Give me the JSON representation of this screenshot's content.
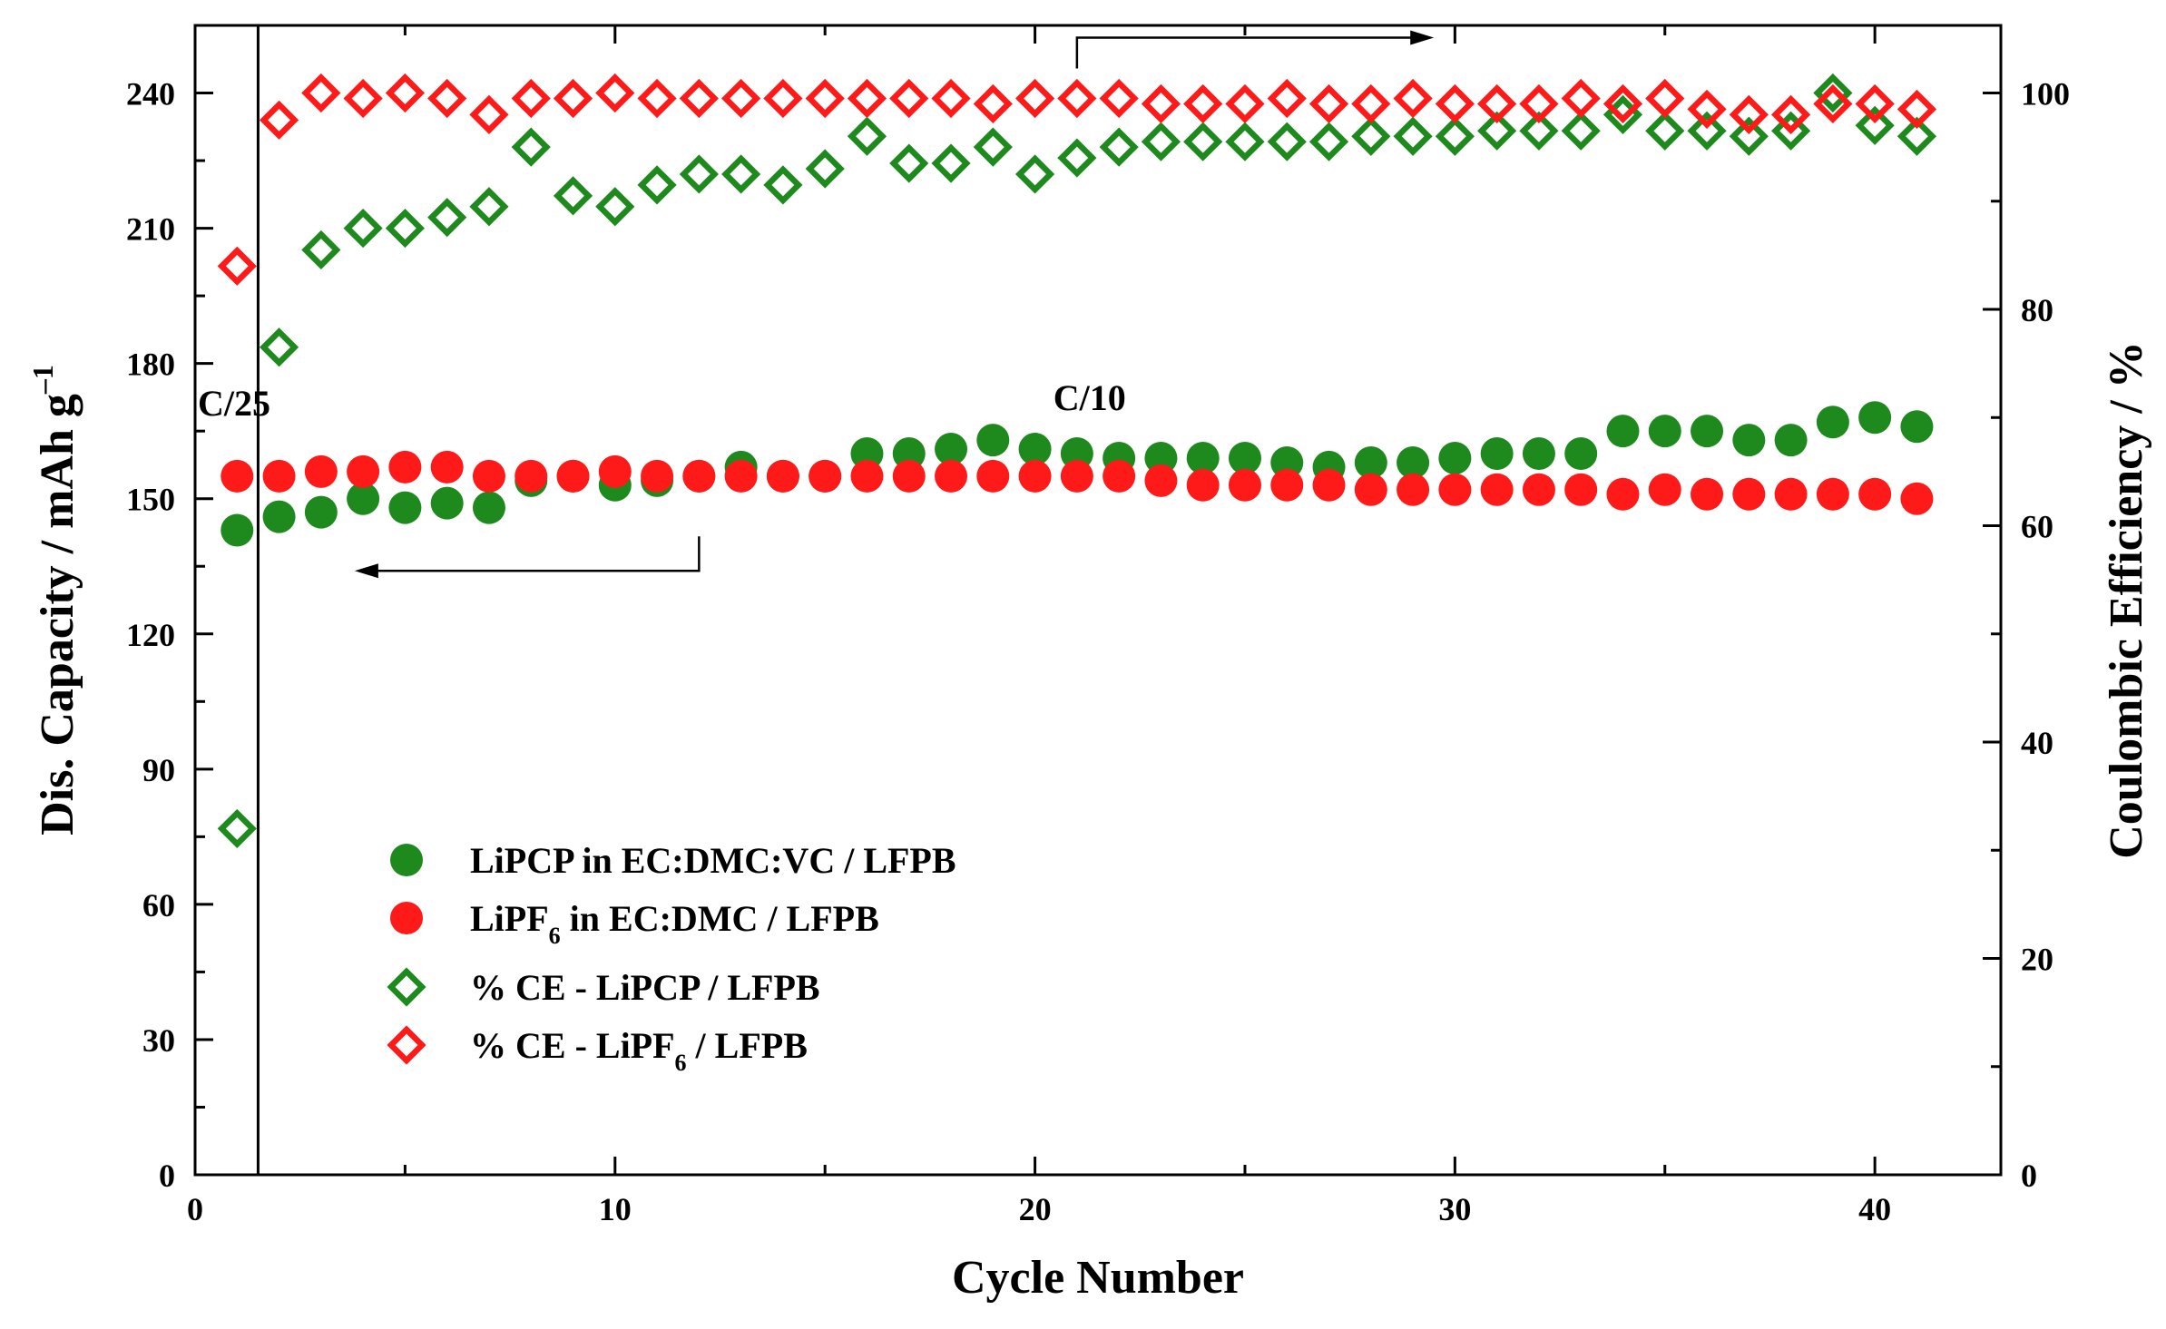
{
  "chart_data": {
    "type": "scatter",
    "xlabel": "Cycle Number",
    "ylabel_left": "Dis. Capacity / mAh g",
    "ylabel_left_sup": "–1",
    "ylabel_right": "Coulombic Efficiency / %",
    "xlim": [
      0,
      43
    ],
    "ylim_left": [
      0,
      255
    ],
    "ylim_right": [
      0,
      106.25
    ],
    "x_ticks": [
      0,
      10,
      20,
      30,
      40
    ],
    "x_tick_labels": [
      "0",
      "10",
      "20",
      "30",
      "40"
    ],
    "y_left_ticks": [
      0,
      30,
      60,
      90,
      120,
      150,
      180,
      210,
      240
    ],
    "y_left_tick_labels": [
      "0",
      "30",
      "60",
      "90",
      "120",
      "150",
      "180",
      "210",
      "240"
    ],
    "y_right_ticks": [
      0,
      20,
      40,
      60,
      80,
      100
    ],
    "y_right_tick_labels": [
      "0",
      "20",
      "40",
      "60",
      "80",
      "100"
    ],
    "annotations": {
      "c25": "C/25",
      "c10": "C/10",
      "divider_x": 1.5,
      "arrow_left": {
        "from": [
          12,
          134
        ],
        "to": [
          3.8,
          134
        ]
      },
      "arrow_right": {
        "from": [
          21,
          100
        ],
        "to": [
          29.5,
          100
        ]
      }
    },
    "series": [
      {
        "name": "LiPCP in EC:DMC:VC / LFPB",
        "legend_parts": [
          "LiPCP in EC:DMC:VC / LFPB"
        ],
        "marker": "circle",
        "color": "#1e8a1e",
        "axis": "left",
        "x": [
          1,
          2,
          3,
          4,
          5,
          6,
          7,
          8,
          9,
          10,
          11,
          12,
          13,
          14,
          15,
          16,
          17,
          18,
          19,
          20,
          21,
          22,
          23,
          24,
          25,
          26,
          27,
          28,
          29,
          30,
          31,
          32,
          33,
          34,
          35,
          36,
          37,
          38,
          39,
          40,
          41
        ],
        "values": [
          143,
          146,
          147,
          150,
          148,
          149,
          148,
          154,
          155,
          153,
          154,
          155,
          157,
          155,
          155,
          160,
          160,
          161,
          163,
          161,
          160,
          159,
          159,
          159,
          159,
          158,
          157,
          158,
          158,
          159,
          160,
          160,
          160,
          165,
          165,
          165,
          163,
          163,
          167,
          168,
          166
        ]
      },
      {
        "name": "LiPF6 in EC:DMC / LFPB",
        "legend_parts": [
          "LiPF",
          "6",
          " in EC:DMC / LFPB"
        ],
        "marker": "circle",
        "color": "#ff1a1a",
        "axis": "left",
        "x": [
          1,
          2,
          3,
          4,
          5,
          6,
          7,
          8,
          9,
          10,
          11,
          12,
          13,
          14,
          15,
          16,
          17,
          18,
          19,
          20,
          21,
          22,
          23,
          24,
          25,
          26,
          27,
          28,
          29,
          30,
          31,
          32,
          33,
          34,
          35,
          36,
          37,
          38,
          39,
          40,
          41
        ],
        "values": [
          155,
          155,
          156,
          156,
          157,
          157,
          155,
          155,
          155,
          156,
          155,
          155,
          155,
          155,
          155,
          155,
          155,
          155,
          155,
          155,
          155,
          155,
          154,
          153,
          153,
          153,
          153,
          152,
          152,
          152,
          152,
          152,
          152,
          151,
          152,
          151,
          151,
          151,
          151,
          151,
          150
        ]
      },
      {
        "name": "% CE - LiPCP / LFPB",
        "legend_parts": [
          "% CE - LiPCP / LFPB"
        ],
        "marker": "diamond-open",
        "color": "#1e8a1e",
        "axis": "right",
        "x": [
          1,
          2,
          3,
          4,
          5,
          6,
          7,
          8,
          9,
          10,
          11,
          12,
          13,
          14,
          15,
          16,
          17,
          18,
          19,
          20,
          21,
          22,
          23,
          24,
          25,
          26,
          27,
          28,
          29,
          30,
          31,
          32,
          33,
          34,
          35,
          36,
          37,
          38,
          39,
          40,
          41
        ],
        "values": [
          32,
          76.5,
          85.5,
          87.5,
          87.5,
          88.5,
          89.5,
          95,
          90.5,
          89.5,
          91.5,
          92.5,
          92.5,
          91.5,
          93,
          96,
          93.5,
          93.5,
          95,
          92.5,
          94,
          95,
          95.5,
          95.5,
          95.5,
          95.5,
          95.5,
          96,
          96,
          96,
          96.5,
          96.5,
          96.5,
          98,
          96.5,
          96.5,
          96,
          96.5,
          100,
          97,
          96
        ]
      },
      {
        "name": "% CE - LiPF6 / LFPB",
        "legend_parts": [
          "% CE - LiPF",
          "6",
          " / LFPB"
        ],
        "marker": "diamond-open",
        "color": "#ff1a1a",
        "axis": "right",
        "x": [
          1,
          2,
          3,
          4,
          5,
          6,
          7,
          8,
          9,
          10,
          11,
          12,
          13,
          14,
          15,
          16,
          17,
          18,
          19,
          20,
          21,
          22,
          23,
          24,
          25,
          26,
          27,
          28,
          29,
          30,
          31,
          32,
          33,
          34,
          35,
          36,
          37,
          38,
          39,
          40,
          41
        ],
        "values": [
          84,
          97.5,
          100,
          99.5,
          100,
          99.5,
          98,
          99.5,
          99.5,
          100,
          99.5,
          99.5,
          99.5,
          99.5,
          99.5,
          99.5,
          99.5,
          99.5,
          99,
          99.5,
          99.5,
          99.5,
          99,
          99,
          99,
          99.5,
          99,
          99,
          99.5,
          99,
          99,
          99,
          99.5,
          99,
          99.5,
          98.5,
          98,
          98,
          99,
          99,
          98.5
        ]
      }
    ]
  }
}
